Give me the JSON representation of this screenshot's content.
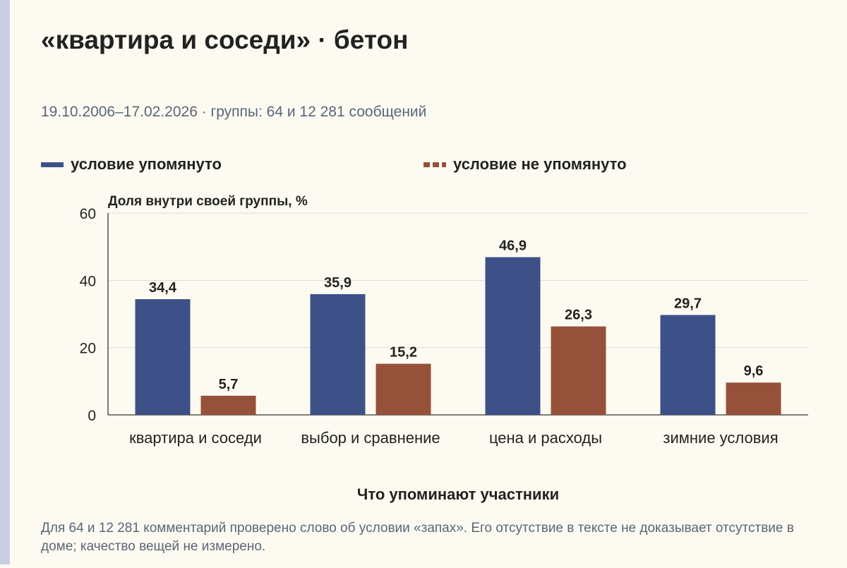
{
  "title": "«квартира и соседи» · бетон",
  "subtitle": "19.10.2006–17.02.2026 · группы: 64 и 12 281 сообщений",
  "footnote": "Для 64 и 12 281 комментарий проверено слово об условии «запах». Его отсутствие в тексте не доказывает отсутствие в доме; качество вещей не измерено.",
  "chart_data": {
    "type": "bar",
    "categories": [
      "квартира и соседи",
      "выбор и сравнение",
      "цена и расходы",
      "зимние условия"
    ],
    "series": [
      {
        "name": "условие упомянуто",
        "values": [
          34.4,
          35.9,
          46.9,
          29.7
        ],
        "value_labels": [
          "34,4",
          "35,9",
          "46,9",
          "29,7"
        ],
        "color": "#3d5188"
      },
      {
        "name": "условие не упомянуто",
        "values": [
          5.7,
          15.2,
          26.3,
          9.6
        ],
        "value_labels": [
          "5,7",
          "15,2",
          "26,3",
          "9,6"
        ],
        "color": "#96513a"
      }
    ],
    "ylabel": "Доля внутри своей группы, %",
    "xlabel": "Что упоминают участники",
    "ylim": [
      0,
      60
    ],
    "yticks": [
      0,
      20,
      40,
      60
    ],
    "grid": true,
    "legend": "top"
  }
}
